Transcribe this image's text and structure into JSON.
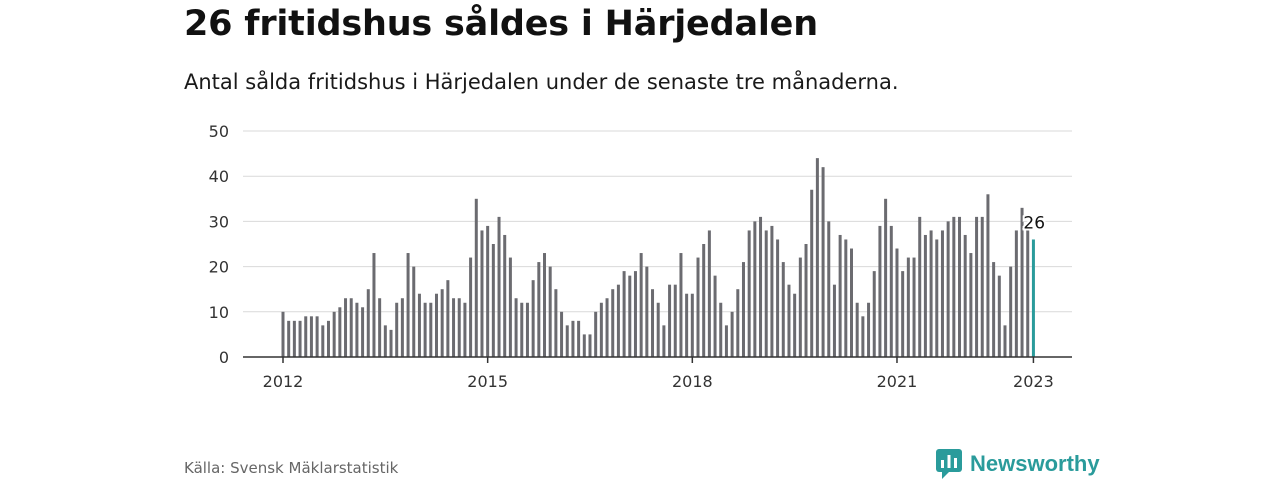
{
  "title": "26 fritidshus såldes i Härjedalen",
  "subtitle": "Antal sålda fritidshus i Härjedalen under de senaste tre månaderna.",
  "source": "Källa: Svensk Mäklarstatistik",
  "brand": {
    "name": "Newsworthy",
    "icon": "newsworthy-logo-icon"
  },
  "colors": {
    "bar": "#6b6b70",
    "highlight": "#2a9b9b",
    "grid": "#d9d9d9",
    "brand": "#2a9b9b"
  },
  "chart_data": {
    "type": "bar",
    "x_start": "2012-01",
    "interval": "month",
    "ylim": [
      0,
      50
    ],
    "yticks": [
      "0",
      "10",
      "20",
      "30",
      "40",
      "50"
    ],
    "xticks": [
      {
        "label": "2012",
        "index": 0
      },
      {
        "label": "2015",
        "index": 36
      },
      {
        "label": "2018",
        "index": 72
      },
      {
        "label": "2021",
        "index": 108
      },
      {
        "label": "2023",
        "index": 132
      }
    ],
    "grid": true,
    "values": [
      10,
      8,
      8,
      8,
      9,
      9,
      9,
      7,
      8,
      10,
      11,
      13,
      13,
      12,
      11,
      15,
      23,
      13,
      7,
      6,
      12,
      13,
      23,
      20,
      14,
      12,
      12,
      14,
      15,
      17,
      13,
      13,
      12,
      22,
      35,
      28,
      29,
      25,
      31,
      27,
      22,
      13,
      12,
      12,
      17,
      21,
      23,
      20,
      15,
      10,
      7,
      8,
      8,
      5,
      5,
      10,
      12,
      13,
      15,
      16,
      19,
      18,
      19,
      23,
      20,
      15,
      12,
      7,
      16,
      16,
      23,
      14,
      14,
      22,
      25,
      28,
      18,
      12,
      7,
      10,
      15,
      21,
      28,
      30,
      31,
      28,
      29,
      26,
      21,
      16,
      14,
      22,
      25,
      37,
      44,
      42,
      30,
      16,
      27,
      26,
      24,
      12,
      9,
      12,
      19,
      29,
      35,
      29,
      24,
      19,
      22,
      22,
      31,
      27,
      28,
      26,
      28,
      30,
      31,
      31,
      27,
      23,
      31,
      31,
      36,
      21,
      18,
      7,
      20,
      28,
      33,
      28,
      26
    ],
    "highlight_index": 132,
    "highlight_label": "26"
  }
}
